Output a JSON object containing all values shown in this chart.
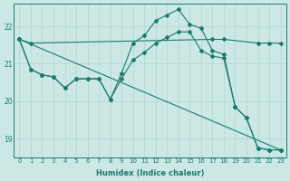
{
  "xlabel": "Humidex (Indice chaleur)",
  "background_color": "#cce8e5",
  "grid_color": "#aed4d0",
  "line_color": "#1a7a6e",
  "xlim": [
    -0.5,
    23.5
  ],
  "ylim": [
    18.5,
    22.6
  ],
  "yticks": [
    19,
    20,
    21,
    22
  ],
  "xticks": [
    0,
    1,
    2,
    3,
    4,
    5,
    6,
    7,
    8,
    9,
    10,
    11,
    12,
    13,
    14,
    15,
    16,
    17,
    18,
    19,
    20,
    21,
    22,
    23
  ],
  "line1_x": [
    0,
    1,
    17,
    18,
    21,
    22,
    23
  ],
  "line1_y": [
    21.65,
    21.55,
    21.65,
    21.65,
    21.55,
    21.55,
    21.55
  ],
  "line2_x": [
    0,
    1,
    2,
    3,
    4,
    5,
    6,
    7,
    8,
    9,
    10,
    11,
    12,
    13,
    14,
    15,
    16,
    17,
    18,
    19,
    20,
    21,
    22,
    23
  ],
  "line2_y": [
    21.65,
    20.85,
    20.7,
    20.65,
    20.35,
    20.6,
    20.6,
    20.6,
    20.05,
    20.75,
    21.55,
    21.75,
    22.15,
    22.3,
    22.45,
    22.05,
    21.95,
    21.35,
    21.25,
    19.85,
    19.55,
    18.75,
    18.7,
    18.7
  ],
  "line3_x": [
    0,
    1,
    2,
    3,
    4,
    5,
    6,
    7,
    8,
    9,
    10,
    11,
    12,
    13,
    14,
    15,
    16,
    17,
    18,
    19,
    20,
    21,
    22,
    23
  ],
  "line3_y": [
    21.65,
    20.85,
    20.7,
    20.65,
    20.35,
    20.6,
    20.6,
    20.6,
    20.05,
    20.6,
    21.1,
    21.3,
    21.55,
    21.7,
    21.85,
    21.85,
    21.35,
    21.2,
    21.15,
    19.85,
    19.55,
    18.75,
    18.7,
    18.7
  ],
  "line4_x": [
    0,
    23
  ],
  "line4_y": [
    21.65,
    18.7
  ]
}
